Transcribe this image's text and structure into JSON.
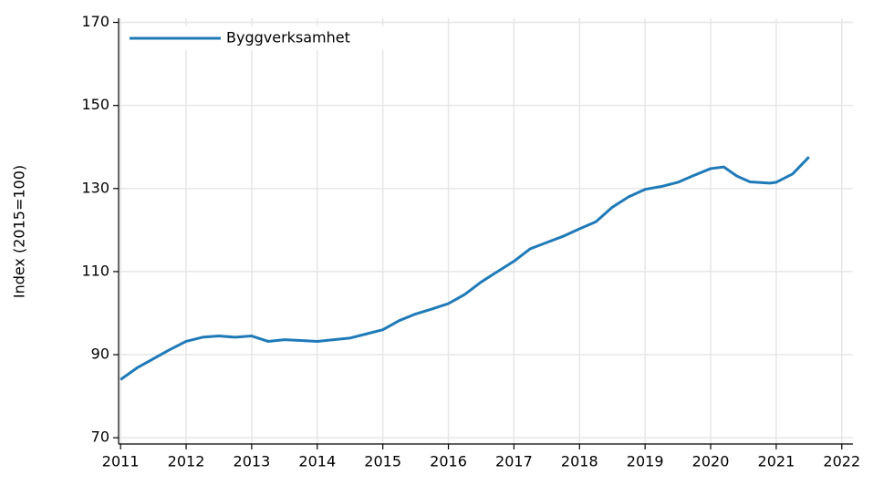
{
  "chart_data": {
    "type": "line",
    "y_label": "Index (2015=100)",
    "x": [
      2011.0,
      2011.25,
      2011.5,
      2011.75,
      2012.0,
      2012.25,
      2012.5,
      2012.75,
      2013.0,
      2013.25,
      2013.5,
      2013.75,
      2014.0,
      2014.25,
      2014.5,
      2014.75,
      2015.0,
      2015.25,
      2015.5,
      2015.75,
      2016.0,
      2016.25,
      2016.5,
      2016.75,
      2017.0,
      2017.25,
      2017.5,
      2017.75,
      2018.0,
      2018.25,
      2018.5,
      2018.75,
      2019.0,
      2019.25,
      2019.5,
      2019.75,
      2020.0,
      2020.2,
      2020.4,
      2020.6,
      2020.9,
      2021.0,
      2021.25,
      2021.5
    ],
    "series": [
      {
        "name": "Byggverksamhet",
        "color": "#1f7ab8",
        "values": [
          84,
          86.8,
          89,
          91.2,
          93.2,
          94.2,
          94.5,
          94.2,
          94.5,
          93.2,
          93.6,
          93.4,
          93.2,
          93.6,
          94.0,
          95.0,
          96.0,
          98.2,
          99.8,
          101,
          102.3,
          104.5,
          107.5,
          110,
          112.5,
          115.5,
          117,
          118.5,
          120.3,
          122,
          125.5,
          128,
          129.8,
          130.5,
          131.5,
          133.2,
          134.8,
          135.2,
          133,
          131.6,
          131.3,
          131.5,
          133.5,
          137.6
        ]
      }
    ],
    "xlim": [
      2010.97,
      2022.17
    ],
    "xticks": [
      2011,
      2012,
      2013,
      2014,
      2015,
      2016,
      2017,
      2018,
      2019,
      2020,
      2021,
      2022
    ],
    "ylim": [
      68.5,
      171
    ],
    "yticks": [
      70,
      90,
      110,
      130,
      150,
      170
    ],
    "grid": true,
    "legend": "upper-left"
  }
}
